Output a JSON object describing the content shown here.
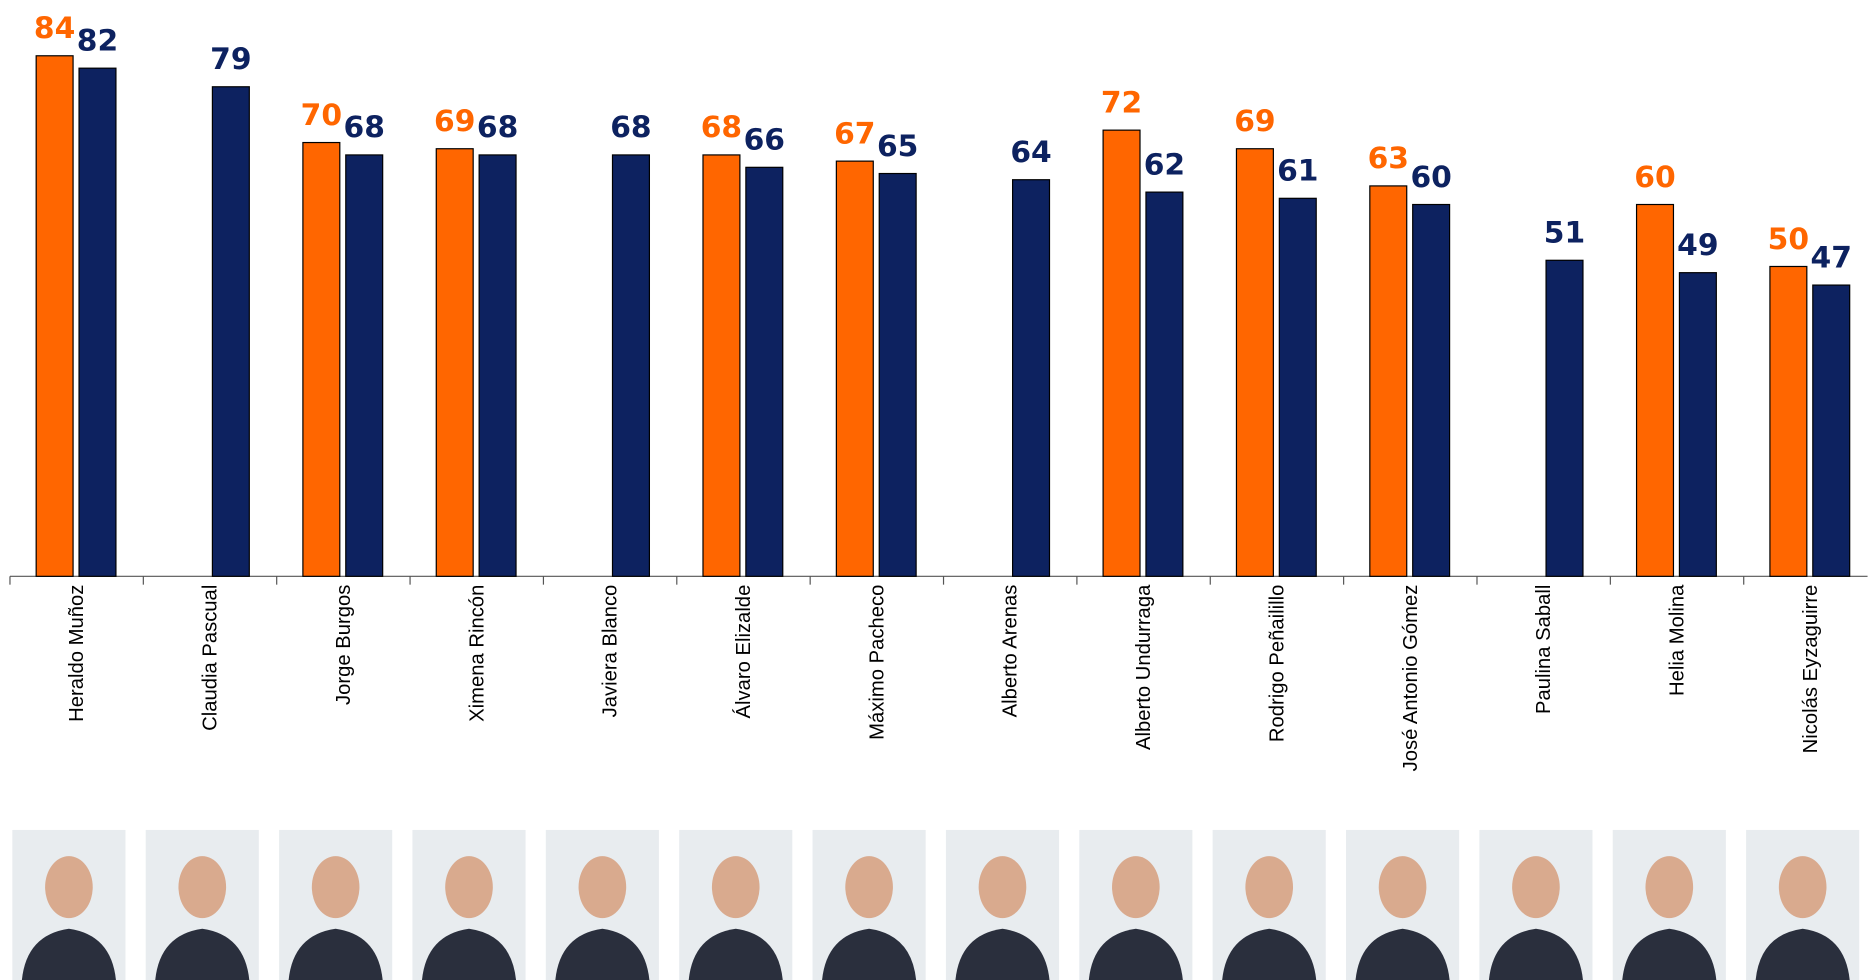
{
  "chart_data": {
    "type": "bar",
    "categories": [
      "Heraldo Muñoz",
      "Claudia Pascual",
      "Jorge Burgos",
      "Ximena Rincón",
      "Javiera Blanco",
      "Álvaro Elizalde",
      "Máximo Pacheco",
      "Alberto Arenas",
      "Alberto Undurraga",
      "Rodrigo Peñailillo",
      "José Antonio Gómez",
      "Paulina Saball",
      "Helia Molina",
      "Nicolás Eyzaguirre"
    ],
    "series": [
      {
        "color": "#ff6600",
        "values": [
          84,
          null,
          70,
          69,
          null,
          68,
          67,
          null,
          72,
          69,
          63,
          null,
          60,
          50
        ]
      },
      {
        "color": "#0d2260",
        "values": [
          82,
          79,
          68,
          68,
          68,
          66,
          65,
          64,
          62,
          61,
          60,
          51,
          49,
          47
        ]
      }
    ],
    "ylim": [
      0,
      93
    ]
  }
}
